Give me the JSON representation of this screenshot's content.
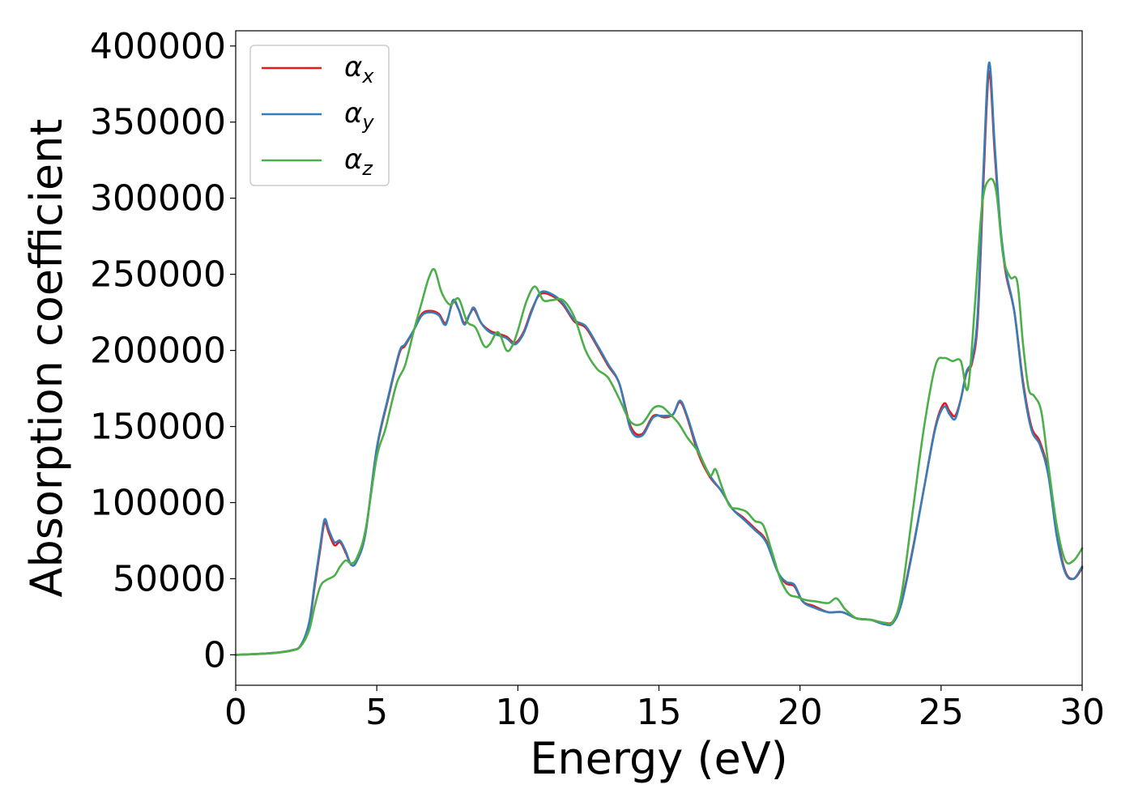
{
  "chart_data": {
    "type": "line",
    "title": "",
    "xlabel": "Energy (eV)",
    "ylabel": "Absorption coefficient",
    "xlim": [
      0,
      30
    ],
    "ylim": [
      -20000,
      410000
    ],
    "xticks": [
      0,
      5,
      10,
      15,
      20,
      25,
      30
    ],
    "xtick_labels": [
      "0",
      "5",
      "10",
      "15",
      "20",
      "25",
      "30"
    ],
    "yticks": [
      0,
      50000,
      100000,
      150000,
      200000,
      250000,
      300000,
      350000,
      400000
    ],
    "ytick_labels": [
      "0",
      "50000",
      "100000",
      "150000",
      "200000",
      "250000",
      "300000",
      "350000",
      "400000"
    ],
    "grid": false,
    "legend_position": "top-left",
    "series": [
      {
        "name": "α_x",
        "legend_base": "α",
        "legend_sub": "x",
        "color": "#e41a1c",
        "x": [
          0,
          1,
          1.5,
          2,
          2.3,
          2.6,
          2.8,
          3.0,
          3.15,
          3.3,
          3.5,
          3.7,
          3.9,
          4.1,
          4.3,
          4.6,
          5.0,
          5.4,
          5.8,
          6.0,
          6.3,
          6.6,
          6.9,
          7.2,
          7.45,
          7.7,
          7.9,
          8.1,
          8.3,
          8.45,
          8.7,
          9.0,
          9.3,
          9.6,
          9.9,
          10.2,
          10.5,
          10.8,
          11.2,
          11.6,
          12.0,
          12.4,
          12.8,
          13.2,
          13.6,
          14.0,
          14.4,
          14.8,
          15.2,
          15.5,
          15.75,
          16.0,
          16.4,
          16.8,
          17.2,
          17.6,
          18.0,
          18.4,
          18.8,
          19.2,
          19.5,
          19.8,
          20.1,
          20.5,
          21.0,
          21.5,
          22.0,
          22.5,
          23.0,
          23.3,
          23.6,
          24.0,
          24.4,
          24.8,
          25.1,
          25.3,
          25.5,
          25.7,
          25.9,
          26.1,
          26.3,
          26.5,
          26.7,
          26.9,
          27.1,
          27.3,
          27.6,
          27.9,
          28.2,
          28.5,
          28.8,
          29.1,
          29.4,
          29.7,
          30.0
        ],
        "y": [
          0,
          800,
          1500,
          3000,
          6000,
          20000,
          45000,
          70000,
          87000,
          80000,
          72000,
          74000,
          67000,
          59000,
          62000,
          80000,
          135000,
          168000,
          198000,
          203000,
          213000,
          224000,
          226000,
          224000,
          218000,
          232000,
          227000,
          218000,
          224000,
          227000,
          218000,
          213000,
          211000,
          209000,
          205000,
          212000,
          227000,
          237000,
          236000,
          230000,
          219000,
          215000,
          203000,
          190000,
          178000,
          150000,
          145000,
          157000,
          156000,
          158000,
          166000,
          156000,
          132000,
          117000,
          108000,
          96000,
          90000,
          83000,
          75000,
          55000,
          47000,
          45000,
          35000,
          32000,
          28000,
          28000,
          24000,
          23000,
          21000,
          22000,
          35000,
          70000,
          110000,
          150000,
          165000,
          160000,
          157000,
          168000,
          185000,
          192000,
          220000,
          310000,
          383000,
          330000,
          280000,
          250000,
          225000,
          180000,
          150000,
          140000,
          120000,
          80000,
          55000,
          50000,
          57000
        ]
      },
      {
        "name": "α_y",
        "legend_base": "α",
        "legend_sub": "y",
        "color": "#377eb8",
        "x": [
          0,
          1,
          1.5,
          2,
          2.3,
          2.6,
          2.8,
          3.0,
          3.15,
          3.3,
          3.5,
          3.7,
          3.9,
          4.1,
          4.3,
          4.6,
          5.0,
          5.4,
          5.8,
          6.0,
          6.3,
          6.6,
          6.9,
          7.2,
          7.45,
          7.7,
          7.9,
          8.1,
          8.3,
          8.45,
          8.7,
          9.0,
          9.3,
          9.6,
          9.9,
          10.2,
          10.5,
          10.8,
          11.2,
          11.6,
          12.0,
          12.4,
          12.8,
          13.2,
          13.6,
          14.0,
          14.4,
          14.8,
          15.2,
          15.5,
          15.75,
          16.0,
          16.4,
          16.8,
          17.2,
          17.6,
          18.0,
          18.4,
          18.8,
          19.2,
          19.5,
          19.8,
          20.1,
          20.5,
          21.0,
          21.5,
          22.0,
          22.5,
          23.0,
          23.3,
          23.6,
          24.0,
          24.4,
          24.8,
          25.1,
          25.3,
          25.5,
          25.7,
          25.9,
          26.1,
          26.3,
          26.5,
          26.7,
          26.9,
          27.1,
          27.3,
          27.6,
          27.9,
          28.2,
          28.5,
          28.8,
          29.1,
          29.4,
          29.7,
          30.0
        ],
        "y": [
          0,
          800,
          1500,
          3000,
          6000,
          21000,
          47000,
          72000,
          89000,
          82000,
          74000,
          75000,
          68000,
          59000,
          62000,
          80000,
          136000,
          169000,
          199000,
          204000,
          213000,
          223000,
          225000,
          223000,
          217000,
          233000,
          227000,
          217000,
          224000,
          228000,
          218000,
          212000,
          210000,
          208000,
          204000,
          211000,
          226000,
          238000,
          237000,
          231000,
          220000,
          216000,
          204000,
          191000,
          178000,
          148000,
          144000,
          156000,
          157000,
          158000,
          167000,
          157000,
          134000,
          118000,
          108000,
          96000,
          89000,
          82000,
          74000,
          55000,
          48000,
          46000,
          35000,
          31000,
          28000,
          28000,
          24000,
          23000,
          20000,
          21000,
          34000,
          69000,
          110000,
          149000,
          163000,
          158000,
          155000,
          168000,
          186000,
          194000,
          225000,
          318000,
          389000,
          335000,
          282000,
          252000,
          225000,
          178000,
          148000,
          138000,
          118000,
          78000,
          54000,
          50000,
          58000
        ]
      },
      {
        "name": "α_z",
        "legend_base": "α",
        "legend_sub": "z",
        "color": "#4daf4a",
        "x": [
          0,
          1,
          1.5,
          2,
          2.3,
          2.6,
          2.8,
          3.0,
          3.2,
          3.5,
          3.7,
          3.9,
          4.1,
          4.3,
          4.6,
          5.0,
          5.3,
          5.7,
          6.0,
          6.3,
          6.6,
          6.85,
          7.05,
          7.3,
          7.6,
          7.9,
          8.2,
          8.5,
          8.8,
          9.0,
          9.3,
          9.6,
          9.8,
          10.0,
          10.3,
          10.6,
          10.9,
          11.2,
          11.6,
          12.0,
          12.4,
          12.8,
          13.2,
          13.6,
          14.0,
          14.4,
          14.8,
          15.1,
          15.4,
          15.7,
          16.0,
          16.4,
          16.8,
          17.0,
          17.2,
          17.5,
          17.8,
          18.1,
          18.4,
          18.7,
          19.0,
          19.3,
          19.6,
          19.9,
          20.2,
          20.6,
          21.0,
          21.3,
          21.6,
          22.0,
          22.5,
          23.0,
          23.3,
          23.6,
          24.0,
          24.4,
          24.8,
          25.1,
          25.4,
          25.7,
          25.95,
          26.2,
          26.45,
          26.7,
          26.95,
          27.2,
          27.45,
          27.7,
          27.9,
          28.1,
          28.3,
          28.55,
          28.8,
          29.1,
          29.4,
          29.7,
          30.0
        ],
        "y": [
          0,
          700,
          1400,
          2800,
          5500,
          16000,
          32000,
          45000,
          49000,
          52000,
          58000,
          62000,
          60000,
          64000,
          82000,
          130000,
          148000,
          178000,
          190000,
          212000,
          232000,
          248000,
          253000,
          238000,
          230000,
          234000,
          219000,
          215000,
          203000,
          204000,
          212000,
          200000,
          203000,
          213000,
          232000,
          242000,
          233000,
          233000,
          233000,
          222000,
          200000,
          188000,
          182000,
          168000,
          153000,
          152000,
          162000,
          163000,
          158000,
          152000,
          143000,
          133000,
          118000,
          122000,
          112000,
          98000,
          96000,
          94000,
          88000,
          85000,
          68000,
          50000,
          40000,
          38000,
          36000,
          35000,
          34000,
          37000,
          30000,
          24000,
          23000,
          21000,
          22000,
          40000,
          95000,
          150000,
          190000,
          195000,
          193000,
          193000,
          175000,
          230000,
          295000,
          312000,
          305000,
          262000,
          248000,
          245000,
          205000,
          175000,
          170000,
          160000,
          125000,
          85000,
          62000,
          62000,
          70000
        ]
      }
    ]
  }
}
